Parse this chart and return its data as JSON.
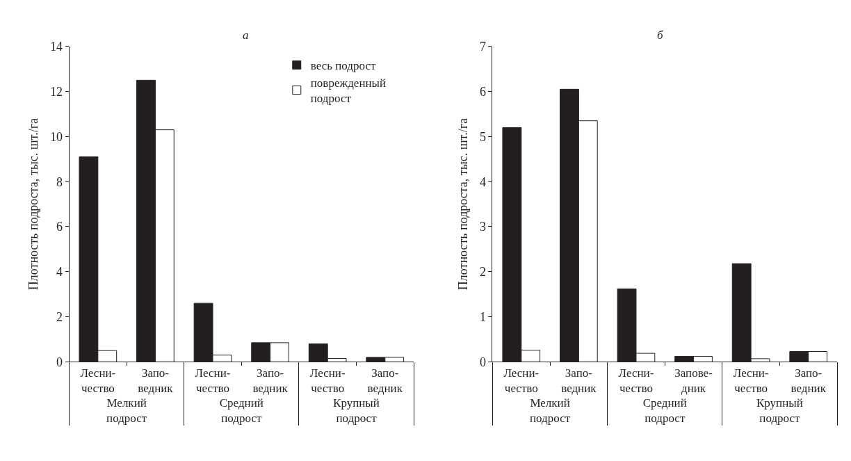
{
  "chart_data": [
    {
      "type": "bar",
      "title": "а",
      "ylabel": "Плотность подроста, тыс. шт./га",
      "categories": [
        "Лесни-\nчество",
        "Запо-\nведник",
        "Лесни-\nчество",
        "Запо-\nведник",
        "Лесни-\nчество",
        "Запо-\nведник"
      ],
      "annotations": [
        "Мелкий\nподрост",
        "Средний\nподрост",
        "Крупный\nподрост"
      ],
      "series": [
        {
          "name": "весь подрост",
          "color": "#231f20",
          "values": [
            9.1,
            12.5,
            2.6,
            0.85,
            0.8,
            0.2
          ]
        },
        {
          "name": "поврежденный\nподрост",
          "color": "#ffffff",
          "values": [
            0.5,
            10.3,
            0.3,
            0.85,
            0.15,
            0.2
          ]
        }
      ],
      "ylim": [
        0,
        14
      ],
      "yticks": [
        0,
        2,
        4,
        6,
        8,
        10,
        12,
        14
      ],
      "legend": "top right"
    },
    {
      "type": "bar",
      "title": "б",
      "ylabel": "Плотность подроста, тыс. шт./га",
      "categories": [
        "Лесни-\nчество",
        "Запо-\nведник",
        "Лесни-\nчество",
        "Запове-\nдник",
        "Лесни-\nчество",
        "Запо-\nведник"
      ],
      "annotations": [
        "Мелкий\nподрост",
        "Средний\nподрост",
        "Крупный\nподрост"
      ],
      "series": [
        {
          "color": "#231f20",
          "values": [
            5.2,
            6.05,
            1.62,
            0.12,
            2.18,
            0.23
          ]
        },
        {
          "color": "#ffffff",
          "values": [
            0.26,
            5.35,
            0.19,
            0.12,
            0.07,
            0.23
          ]
        }
      ],
      "ylim": [
        0,
        7
      ],
      "yticks": [
        0,
        1,
        2,
        3,
        4,
        5,
        6,
        7
      ],
      "legend": false
    }
  ]
}
